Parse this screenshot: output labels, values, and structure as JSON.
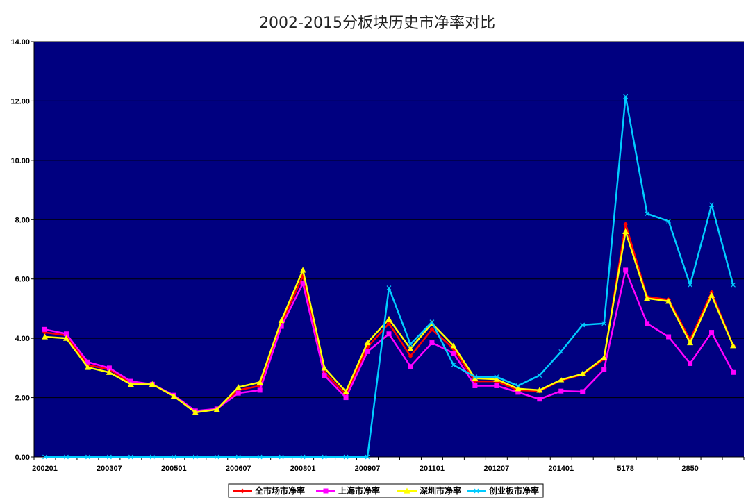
{
  "chart_data": {
    "type": "line",
    "title": "2002-2015分板块历史市净率对比",
    "xlabel": "",
    "ylabel": "",
    "ylim": [
      0,
      14
    ],
    "yticks": [
      "0.00",
      "2.00",
      "4.00",
      "6.00",
      "8.00",
      "10.00",
      "12.00",
      "14.00"
    ],
    "grid": "horizontal",
    "legend_position": "bottom",
    "plot_background": "#000080",
    "x_tick_labels": [
      {
        "index": 0,
        "label": "200201"
      },
      {
        "index": 3,
        "label": "200307"
      },
      {
        "index": 6,
        "label": "200501"
      },
      {
        "index": 9,
        "label": "200607"
      },
      {
        "index": 12,
        "label": "200801"
      },
      {
        "index": 15,
        "label": "200907"
      },
      {
        "index": 18,
        "label": "201101"
      },
      {
        "index": 21,
        "label": "201207"
      },
      {
        "index": 24,
        "label": "201401"
      },
      {
        "index": 27,
        "label": "5178"
      },
      {
        "index": 30,
        "label": "2850"
      }
    ],
    "point_count": 33,
    "series": [
      {
        "name": "全市场市净率",
        "color": "#ff0000",
        "marker": "diamond",
        "values": [
          4.2,
          4.1,
          3.1,
          2.95,
          2.5,
          2.45,
          2.05,
          1.52,
          1.6,
          2.25,
          2.4,
          4.5,
          6.1,
          2.85,
          2.1,
          3.7,
          4.5,
          3.4,
          4.3,
          3.65,
          2.55,
          2.55,
          2.25,
          2.22,
          2.58,
          2.78,
          3.3,
          7.85,
          5.4,
          5.3,
          3.95,
          5.55,
          3.75
        ]
      },
      {
        "name": "上海市净率",
        "color": "#ff00ff",
        "marker": "square",
        "values": [
          4.3,
          4.15,
          3.2,
          3.0,
          2.55,
          2.45,
          2.08,
          1.55,
          1.62,
          2.15,
          2.25,
          4.4,
          5.85,
          2.75,
          2.0,
          3.55,
          4.15,
          3.05,
          3.85,
          3.5,
          2.4,
          2.4,
          2.18,
          1.95,
          2.22,
          2.2,
          2.95,
          6.3,
          4.5,
          4.05,
          3.15,
          4.2,
          2.85
        ]
      },
      {
        "name": "深圳市净率",
        "color": "#ffff00",
        "marker": "triangle",
        "values": [
          4.05,
          4.0,
          3.02,
          2.85,
          2.45,
          2.45,
          2.05,
          1.5,
          1.6,
          2.35,
          2.52,
          4.6,
          6.3,
          3.0,
          2.2,
          3.85,
          4.65,
          3.65,
          4.5,
          3.75,
          2.65,
          2.62,
          2.3,
          2.25,
          2.6,
          2.8,
          3.35,
          7.6,
          5.35,
          5.25,
          3.85,
          5.45,
          3.75
        ]
      },
      {
        "name": "创业板市净率",
        "color": "#00ccff",
        "marker": "x",
        "values": [
          0,
          0,
          0,
          0,
          0,
          0,
          0,
          0,
          0,
          0,
          0,
          0,
          0,
          0,
          0,
          0,
          5.7,
          3.8,
          4.55,
          3.1,
          2.7,
          2.7,
          2.4,
          2.75,
          3.55,
          4.45,
          4.5,
          12.15,
          8.2,
          7.95,
          5.8,
          8.5,
          5.8
        ]
      }
    ]
  }
}
